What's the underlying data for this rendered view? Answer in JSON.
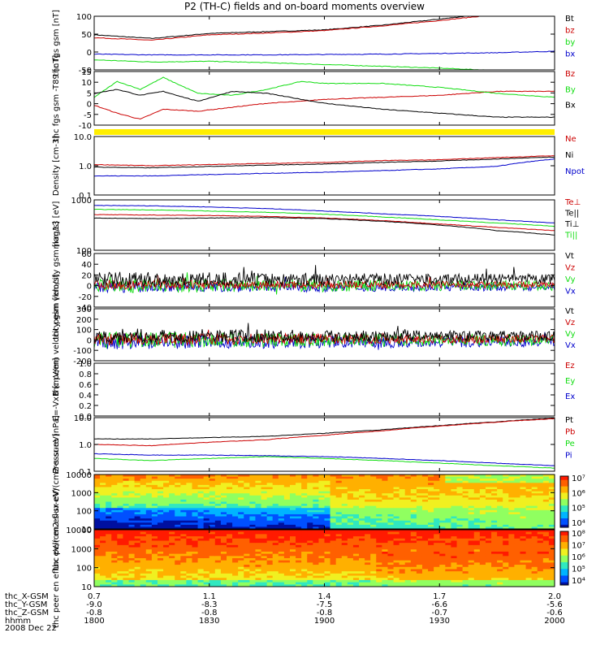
{
  "title": "P2 (TH-C) fields and on-board moments overview",
  "date_label": "2008 Dec 22",
  "colors": {
    "black": "#000000",
    "red": "#cc0000",
    "green": "#11dd11",
    "blue": "#0000cc",
    "yellow": "#ffee00"
  },
  "bottom_axis": {
    "rows": [
      {
        "label": "thc_X-GSM",
        "values": [
          "0.7",
          "1.1",
          "1.4",
          "1.7",
          "2.0"
        ]
      },
      {
        "label": "thc_Y-GSM",
        "values": [
          "-9.0",
          "-8.3",
          "-7.5",
          "-6.6",
          "-5.6"
        ]
      },
      {
        "label": "thc_Z-GSM",
        "values": [
          "-0.8",
          "-0.8",
          "-0.8",
          "-0.7",
          "-0.6"
        ]
      },
      {
        "label": "hhmm",
        "values": [
          "1800",
          "1830",
          "1900",
          "1930",
          "2000"
        ]
      }
    ]
  },
  "chart_data": [
    {
      "type": "line",
      "ylabel": "thc fgs gsm [nT]",
      "ylim": [
        -50,
        100
      ],
      "yticks": [
        "100",
        "50",
        "0",
        "-50"
      ],
      "legend": [
        {
          "name": "Bt",
          "color": "black"
        },
        {
          "name": "bz",
          "color": "red"
        },
        {
          "name": "by",
          "color": "green"
        },
        {
          "name": "bx",
          "color": "blue"
        }
      ],
      "x": [
        18.0,
        18.25,
        18.5,
        18.75,
        19.0,
        19.25,
        19.5,
        19.75,
        20.0
      ],
      "series": [
        {
          "color": "black",
          "values": [
            48,
            38,
            52,
            57,
            62,
            75,
            92,
            110,
            125
          ]
        },
        {
          "color": "red",
          "values": [
            40,
            33,
            48,
            53,
            60,
            73,
            88,
            105,
            118
          ]
        },
        {
          "color": "green",
          "values": [
            -22,
            -28,
            -26,
            -30,
            -35,
            -40,
            -45,
            -52,
            -60
          ]
        },
        {
          "color": "blue",
          "values": [
            -6,
            -8,
            -8,
            -8,
            -7,
            -6,
            -4,
            -2,
            2
          ]
        }
      ]
    },
    {
      "type": "line",
      "ylabel": "thc fgs gsm -T89 [nT]",
      "ylim": [
        -12,
        15
      ],
      "yticks": [
        "15",
        "10",
        "5",
        "0",
        "-5",
        "-10"
      ],
      "legend": [
        {
          "name": "Bz",
          "color": "red"
        },
        {
          "name": "By",
          "color": "green"
        },
        {
          "name": "Bx",
          "color": "black"
        }
      ],
      "x": [
        18.0,
        18.1,
        18.2,
        18.3,
        18.45,
        18.6,
        18.75,
        18.9,
        19.0,
        19.25,
        19.5,
        19.75,
        20.0
      ],
      "series": [
        {
          "color": "red",
          "values": [
            -2,
            -6,
            -9,
            -4,
            -5,
            -3,
            -1,
            0,
            1,
            2,
            3,
            5,
            5
          ]
        },
        {
          "color": "green",
          "values": [
            2,
            10,
            6,
            12,
            4,
            3,
            6,
            10,
            9,
            9,
            7,
            4,
            2
          ]
        },
        {
          "color": "black",
          "values": [
            4,
            6,
            3,
            5,
            0,
            5,
            4,
            1,
            -1,
            -4,
            -6,
            -8,
            -8
          ]
        }
      ]
    },
    {
      "type": "line",
      "ylabel": "Density [cm-3]",
      "ylim": [
        0.1,
        10
      ],
      "yscale": "log",
      "yticks": [
        "10.0",
        "1.0",
        "0.1"
      ],
      "legend": [
        {
          "name": "Ne",
          "color": "red"
        },
        {
          "name": "Ni",
          "color": "black"
        },
        {
          "name": "Npot",
          "color": "blue"
        }
      ],
      "x": [
        18.0,
        18.25,
        18.5,
        18.75,
        19.0,
        19.25,
        19.5,
        19.75,
        20.0
      ],
      "series": [
        {
          "color": "red",
          "values": [
            1.1,
            1.0,
            1.1,
            1.2,
            1.3,
            1.5,
            1.6,
            1.9,
            2.2
          ]
        },
        {
          "color": "black",
          "values": [
            0.9,
            0.85,
            0.95,
            1.05,
            1.15,
            1.3,
            1.45,
            1.7,
            2.0
          ]
        },
        {
          "color": "blue",
          "values": [
            0.45,
            0.45,
            0.5,
            0.55,
            0.6,
            0.68,
            0.78,
            0.95,
            1.7
          ]
        }
      ]
    },
    {
      "type": "line",
      "ylabel": "mag13 [eV]",
      "ylim": [
        100,
        10000
      ],
      "yscale": "log",
      "yticks": [
        "1000",
        "100"
      ],
      "legend": [
        {
          "name": "Te⊥",
          "color": "red"
        },
        {
          "name": "Te||",
          "color": "black"
        },
        {
          "name": "Ti⊥",
          "color": "black"
        },
        {
          "name": "Ti||",
          "color": "green"
        }
      ],
      "x": [
        18.0,
        18.25,
        18.5,
        18.75,
        19.0,
        19.25,
        19.5,
        19.75,
        20.0
      ],
      "series": [
        {
          "color": "blue",
          "values": [
            6000,
            5800,
            5200,
            4500,
            3600,
            2800,
            2200,
            1600,
            1200
          ]
        },
        {
          "color": "green",
          "values": [
            4200,
            4000,
            3600,
            3200,
            2700,
            2100,
            1600,
            1200,
            900
          ]
        },
        {
          "color": "red",
          "values": [
            2600,
            2500,
            2400,
            2200,
            1900,
            1500,
            1100,
            800,
            600
          ]
        },
        {
          "color": "black",
          "values": [
            1900,
            1800,
            1900,
            2000,
            1800,
            1400,
            1000,
            600,
            400
          ]
        }
      ]
    },
    {
      "type": "line",
      "ylabel": "thc peim velocity gsm [km/s]",
      "ylim": [
        -40,
        60
      ],
      "yticks": [
        "60",
        "40",
        "20",
        "0",
        "-20",
        "-40"
      ],
      "legend": [
        {
          "name": "Vt",
          "color": "black"
        },
        {
          "name": "Vz",
          "color": "red"
        },
        {
          "name": "Vy",
          "color": "green"
        },
        {
          "name": "Vx",
          "color": "blue"
        }
      ],
      "noisy": true,
      "series": [
        {
          "color": "blue",
          "mean": -3,
          "amp": 10
        },
        {
          "color": "green",
          "mean": 0,
          "amp": 14
        },
        {
          "color": "red",
          "mean": 2,
          "amp": 9
        },
        {
          "color": "black",
          "mean": 12,
          "amp": 14
        }
      ]
    },
    {
      "type": "line",
      "ylabel": "thc peem velocity gsm [km/s]",
      "ylim": [
        -200,
        300
      ],
      "yticks": [
        "300",
        "200",
        "100",
        "0",
        "-100",
        "-200"
      ],
      "legend": [
        {
          "name": "Vt",
          "color": "black"
        },
        {
          "name": "Vz",
          "color": "red"
        },
        {
          "name": "Vy",
          "color": "green"
        },
        {
          "name": "Vx",
          "color": "blue"
        }
      ],
      "noisy": true,
      "series": [
        {
          "color": "blue",
          "mean": -20,
          "amp": 70
        },
        {
          "color": "green",
          "mean": 0,
          "amp": 80
        },
        {
          "color": "red",
          "mean": 10,
          "amp": 60
        },
        {
          "color": "black",
          "mean": 40,
          "amp": 70
        }
      ]
    },
    {
      "type": "line",
      "ylabel": "E=-VxB [mV/m]",
      "ylim": [
        0,
        1
      ],
      "yticks": [
        "1.0",
        "0.8",
        "0.6",
        "0.4",
        "0.2",
        "0.0"
      ],
      "legend": [
        {
          "name": "Ez",
          "color": "red"
        },
        {
          "name": "Ey",
          "color": "green"
        },
        {
          "name": "Ex",
          "color": "blue"
        }
      ],
      "series": []
    },
    {
      "type": "line",
      "ylabel": "Pressure [nPa]",
      "ylim": [
        0.1,
        10
      ],
      "yscale": "log",
      "yticks": [
        "10.0",
        "1.0",
        "0.1"
      ],
      "legend": [
        {
          "name": "Pt",
          "color": "black"
        },
        {
          "name": "Pb",
          "color": "red"
        },
        {
          "name": "Pe",
          "color": "green"
        },
        {
          "name": "Pi",
          "color": "blue"
        }
      ],
      "x": [
        18.0,
        18.25,
        18.5,
        18.75,
        19.0,
        19.25,
        19.5,
        19.75,
        20.0
      ],
      "series": [
        {
          "color": "black",
          "values": [
            1.6,
            1.6,
            1.8,
            2.0,
            2.6,
            3.5,
            5.0,
            7.0,
            9.5
          ]
        },
        {
          "color": "red",
          "values": [
            1.0,
            0.9,
            1.2,
            1.5,
            2.2,
            3.2,
            4.8,
            6.8,
            9.2
          ]
        },
        {
          "color": "blue",
          "values": [
            0.45,
            0.4,
            0.4,
            0.38,
            0.35,
            0.3,
            0.25,
            0.2,
            0.16
          ]
        },
        {
          "color": "green",
          "values": [
            0.3,
            0.25,
            0.3,
            0.35,
            0.3,
            0.25,
            0.2,
            0.16,
            0.13
          ]
        }
      ]
    },
    {
      "type": "heatmap",
      "ylabel": "thc peir en eflux eV/(cm2-s-sr-eV)",
      "ylim": [
        10,
        10000
      ],
      "yscale": "log",
      "yticks": [
        "10000",
        "1000",
        "100",
        "10"
      ],
      "colorbar_labels": [
        "10⁷",
        "10⁶",
        "10⁵",
        "10⁴"
      ],
      "variant": "ion"
    },
    {
      "type": "heatmap",
      "ylabel": "thc peer en eflux eV/(cm2-s-sr-eV)",
      "ylim": [
        10,
        10000
      ],
      "yscale": "log",
      "yticks": [
        "10000",
        "1000",
        "100",
        "10"
      ],
      "colorbar_labels": [
        "10⁸",
        "10⁷",
        "10⁶",
        "10⁵",
        "10⁴"
      ],
      "variant": "electron"
    }
  ]
}
